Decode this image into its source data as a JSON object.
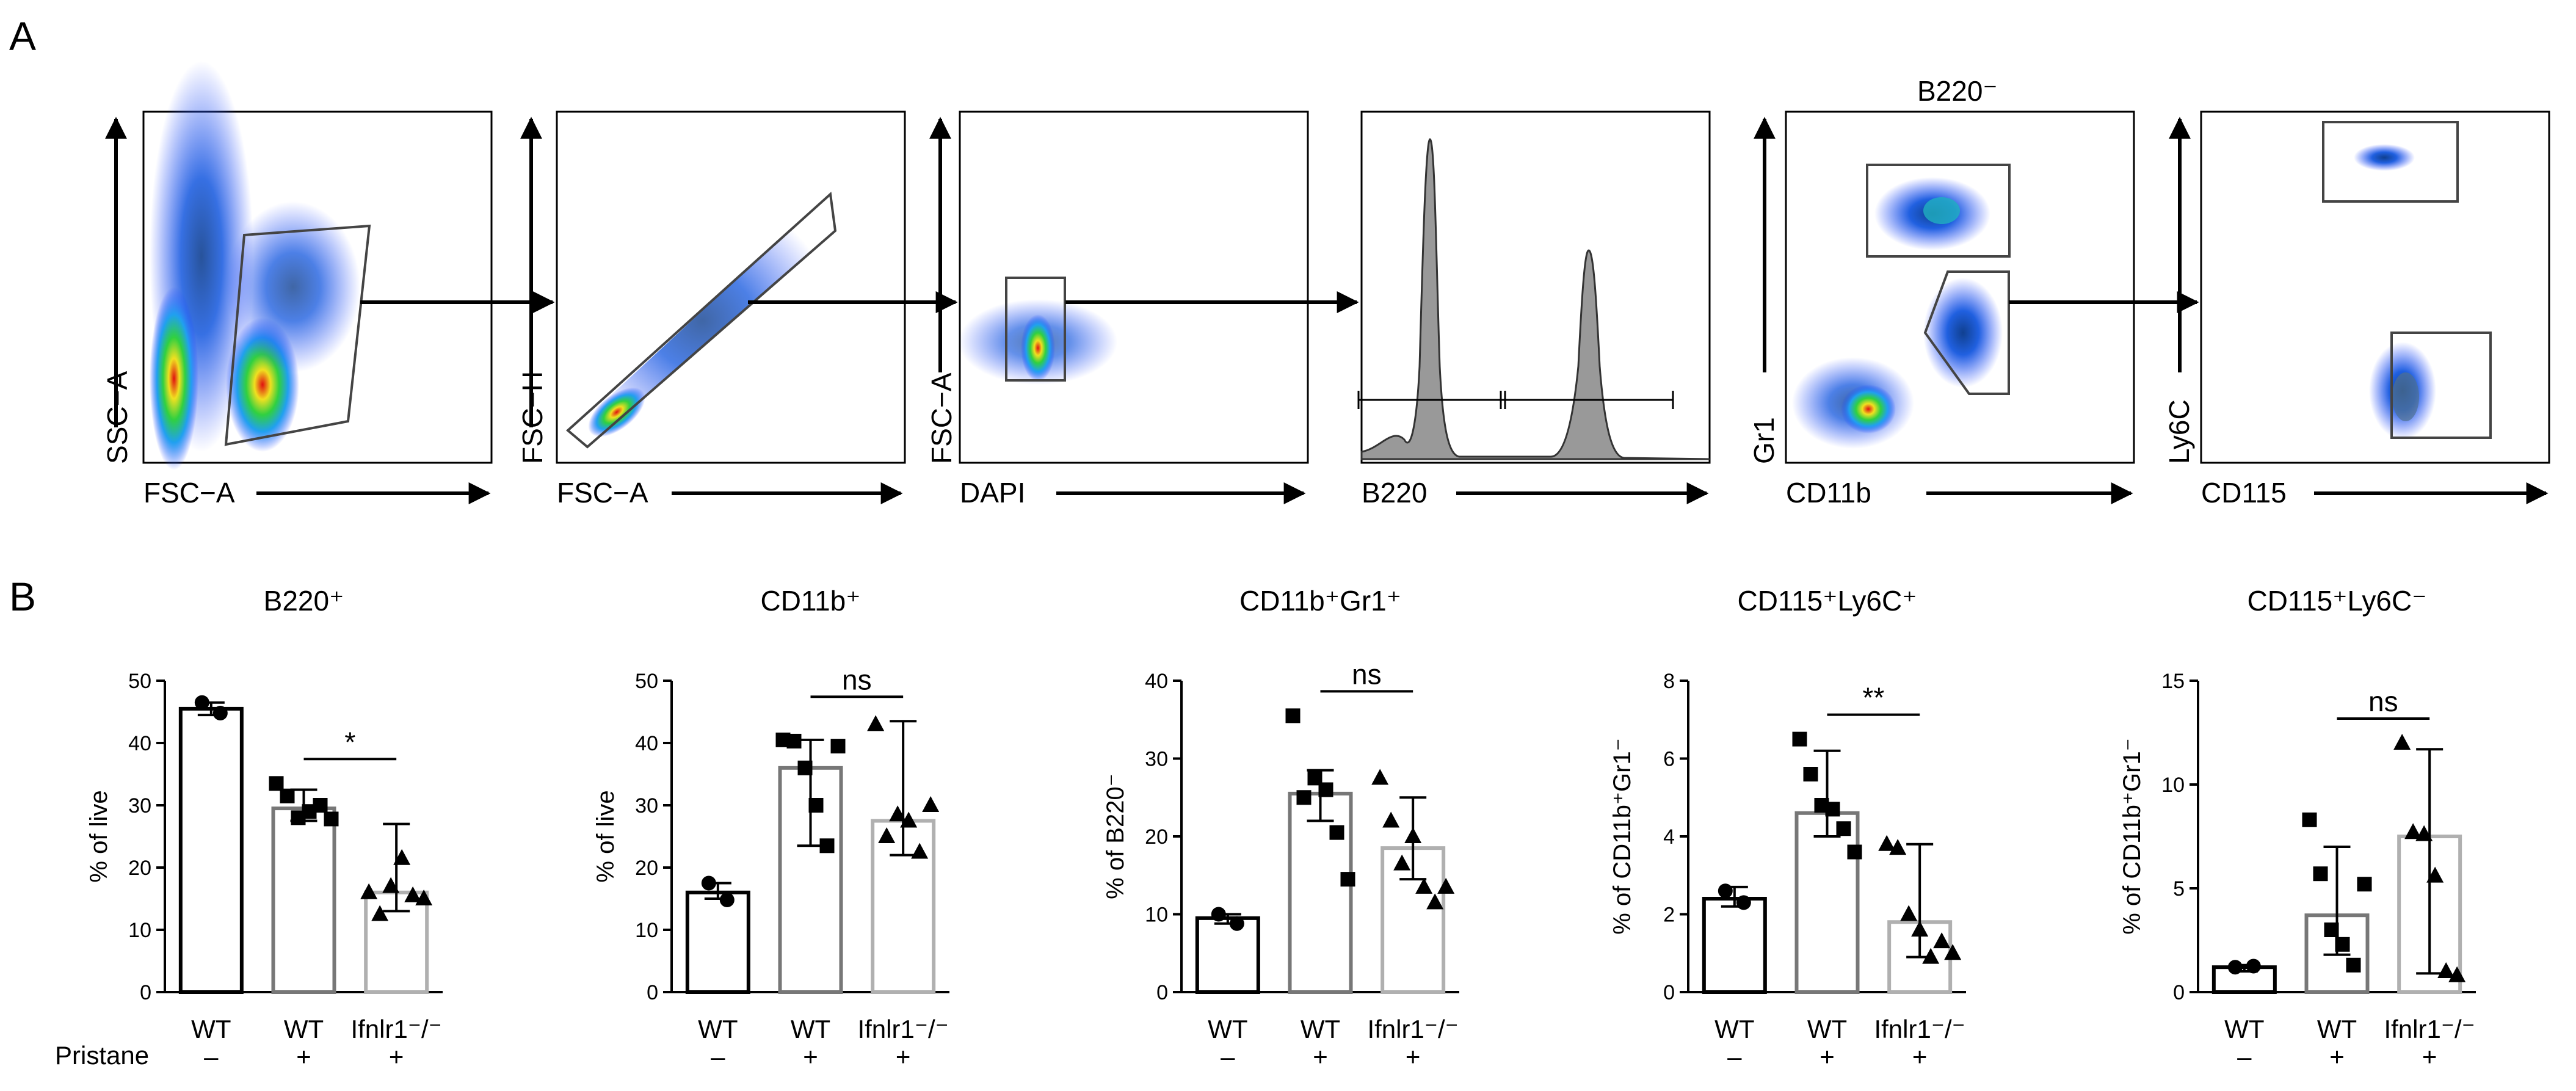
{
  "panels": {
    "a": "A",
    "b": "B"
  },
  "flow": {
    "title_b220neg": "B220⁻",
    "plots": [
      {
        "x_label": "FSC−A",
        "y_label": "SSC−A"
      },
      {
        "x_label": "FSC−A",
        "y_label": "FSC−H"
      },
      {
        "x_label": "DAPI",
        "y_label": "FSC−A"
      },
      {
        "x_label": "B220",
        "y_label": ""
      },
      {
        "x_label": "CD11b",
        "y_label": "Gr1"
      },
      {
        "x_label": "CD115",
        "y_label": "Ly6C"
      }
    ]
  },
  "legend": {
    "pristane_label": "Pristane",
    "pristane_signs": [
      "–",
      "+",
      "+"
    ]
  },
  "colors": {
    "group_edges": [
      "#000000",
      "#777777",
      "#b0b0b0"
    ],
    "point": "#000000"
  },
  "chart_data": [
    {
      "type": "bar",
      "title": "B220⁺",
      "categories": [
        "WT",
        "WT",
        "Ifnlr1⁻/⁻"
      ],
      "ylabel": "% of live",
      "ylim": [
        0,
        50
      ],
      "yticks": [
        0,
        10,
        20,
        30,
        40,
        50
      ],
      "values": [
        45.5,
        29.5,
        16
      ],
      "error_low": [
        44.5,
        27.5,
        13
      ],
      "error_high": [
        46.5,
        32.5,
        27
      ],
      "points": [
        [
          46.5,
          44.8
        ],
        [
          33.5,
          31.5,
          28,
          29,
          30,
          27.8
        ],
        [
          16,
          12.5,
          17,
          21.5,
          15.5,
          15
        ]
      ],
      "markers": [
        "circle",
        "square",
        "triangle"
      ],
      "significance": {
        "label": "*",
        "between": [
          1,
          2
        ]
      }
    },
    {
      "type": "bar",
      "title": "CD11b⁺",
      "categories": [
        "WT",
        "WT",
        "Ifnlr1⁻/⁻"
      ],
      "ylabel": "% of live",
      "ylim": [
        0,
        50
      ],
      "yticks": [
        0,
        10,
        20,
        30,
        40,
        50
      ],
      "values": [
        16,
        36,
        27.5
      ],
      "error_low": [
        15,
        23.5,
        22
      ],
      "error_high": [
        17.5,
        40.5,
        43.5
      ],
      "points": [
        [
          17.5,
          14.8
        ],
        [
          40.5,
          40.3,
          36,
          30,
          23.5,
          39.5
        ],
        [
          43,
          25,
          28.5,
          27.5,
          22.5,
          30
        ]
      ],
      "markers": [
        "circle",
        "square",
        "triangle"
      ],
      "significance": {
        "label": "ns",
        "between": [
          1,
          2
        ]
      }
    },
    {
      "type": "bar",
      "title": "CD11b⁺Gr1⁺",
      "categories": [
        "WT",
        "WT",
        "Ifnlr1⁻/⁻"
      ],
      "ylabel": "% of B220⁻",
      "ylim": [
        0,
        40
      ],
      "yticks": [
        0,
        10,
        20,
        30,
        40
      ],
      "values": [
        9.5,
        25.5,
        18.5
      ],
      "error_low": [
        8.8,
        22,
        14.5
      ],
      "error_high": [
        10,
        28.5,
        25
      ],
      "points": [
        [
          10,
          8.8
        ],
        [
          35.5,
          25,
          27.5,
          26,
          20.5,
          14.5
        ],
        [
          27.5,
          22,
          16.5,
          20,
          13.5,
          11.5,
          13.5
        ]
      ],
      "markers": [
        "circle",
        "square",
        "triangle"
      ],
      "significance": {
        "label": "ns",
        "between": [
          1,
          2
        ]
      }
    },
    {
      "type": "bar",
      "title": "CD115⁺Ly6C⁺",
      "categories": [
        "WT",
        "WT",
        "Ifnlr1⁻/⁻"
      ],
      "ylabel": "% of CD11b⁺Gr1⁻",
      "ylim": [
        0,
        8
      ],
      "yticks": [
        0,
        2,
        4,
        6,
        8
      ],
      "values": [
        2.4,
        4.6,
        1.8
      ],
      "error_low": [
        2.2,
        4.0,
        0.9
      ],
      "error_high": [
        2.7,
        6.2,
        3.8
      ],
      "points": [
        [
          2.6,
          2.3
        ],
        [
          6.5,
          5.6,
          4.8,
          4.7,
          4.2,
          3.6
        ],
        [
          3.8,
          3.7,
          2.0,
          1.6,
          0.9,
          1.3,
          1.0
        ]
      ],
      "markers": [
        "circle",
        "square",
        "triangle"
      ],
      "significance": {
        "label": "**",
        "between": [
          1,
          2
        ]
      }
    },
    {
      "type": "bar",
      "title": "CD115⁺Ly6C⁻",
      "categories": [
        "WT",
        "WT",
        "Ifnlr1⁻/⁻"
      ],
      "ylabel": "% of CD11b⁺Gr1⁻",
      "ylim": [
        0,
        15
      ],
      "yticks": [
        0,
        5,
        10,
        15
      ],
      "values": [
        1.2,
        3.7,
        7.5
      ],
      "error_low": [
        1.0,
        1.8,
        0.9
      ],
      "error_high": [
        1.3,
        7.0,
        11.7
      ],
      "points": [
        [
          1.2,
          1.25
        ],
        [
          8.3,
          5.7,
          3.0,
          2.3,
          1.3,
          5.2
        ],
        [
          12,
          7.7,
          7.6,
          5.6,
          1.0,
          0.8
        ]
      ],
      "markers": [
        "circle",
        "square",
        "triangle"
      ],
      "significance": {
        "label": "ns",
        "between": [
          1,
          2
        ]
      }
    }
  ]
}
